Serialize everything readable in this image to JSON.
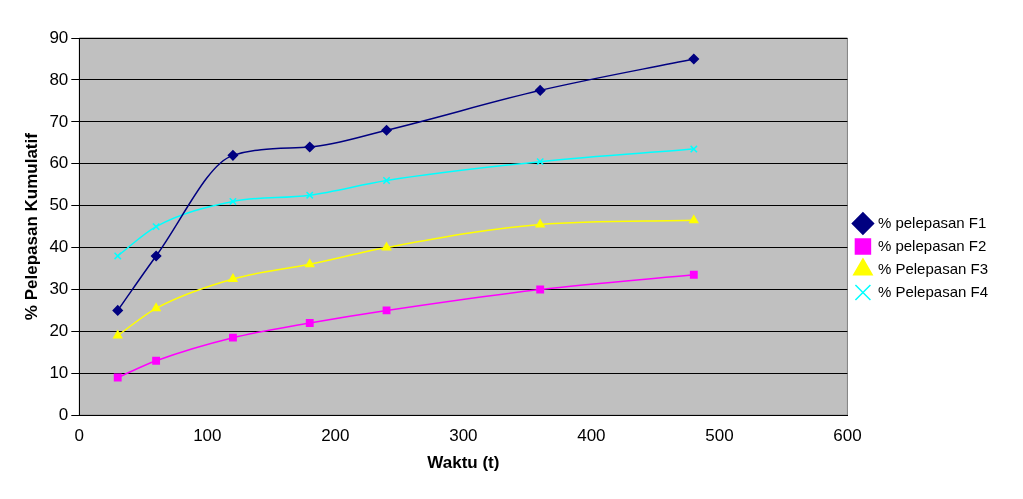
{
  "chart_data": {
    "type": "line",
    "xlabel": "Waktu (t)",
    "ylabel": "% Pelepasan Kumulatif",
    "x": [
      30,
      60,
      120,
      180,
      240,
      360,
      480
    ],
    "series": [
      {
        "name": "% pelepasan F1",
        "color": "#000080",
        "marker": "diamond",
        "values": [
          25,
          38,
          62,
          64,
          68,
          77.5,
          85
        ]
      },
      {
        "name": "% pelepasan F2",
        "color": "#ff00ff",
        "marker": "square",
        "values": [
          9,
          13,
          18.5,
          22,
          25,
          30,
          33.5
        ]
      },
      {
        "name": "% Pelepasan F3",
        "color": "#ffff00",
        "marker": "triangle",
        "values": [
          19,
          25.5,
          32.5,
          36,
          40,
          45.5,
          46.5
        ]
      },
      {
        "name": "% Pelepasan F4",
        "color": "#00ffff",
        "marker": "cross",
        "values": [
          38,
          45,
          51,
          52.5,
          56,
          60.5,
          63.5
        ]
      }
    ],
    "xlim": [
      0,
      600
    ],
    "xticks": [
      0,
      100,
      200,
      300,
      400,
      500,
      600
    ],
    "ylim": [
      0,
      90
    ],
    "yticks": [
      0,
      10,
      20,
      30,
      40,
      50,
      60,
      70,
      80,
      90
    ],
    "grid": "y",
    "legend": "right",
    "line_style": "solid"
  }
}
